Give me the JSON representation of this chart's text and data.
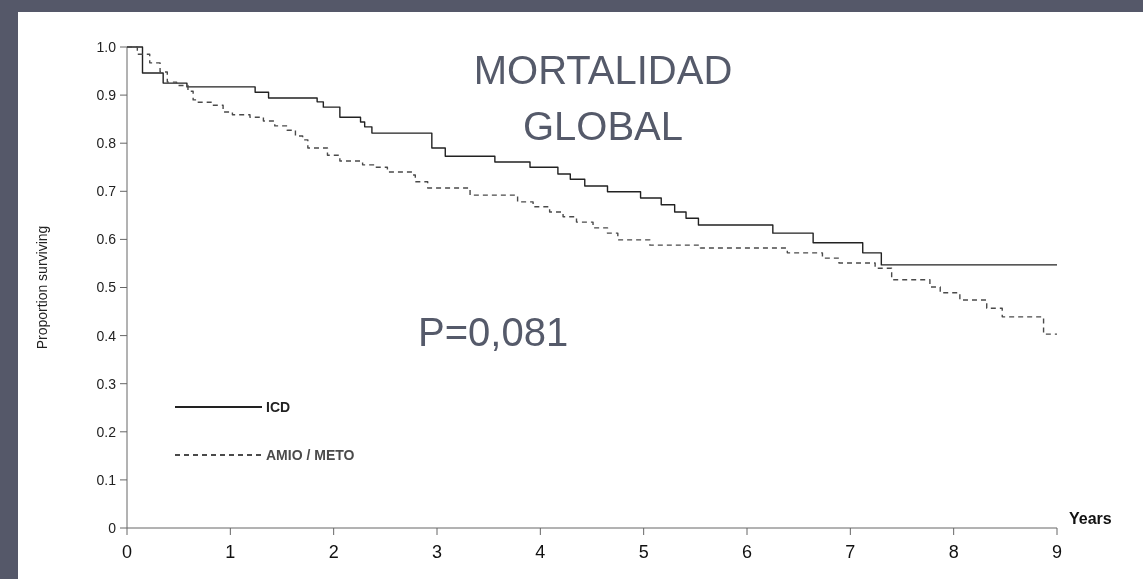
{
  "chart_data": {
    "type": "step",
    "title": "MORTALIDAD GLOBAL",
    "xlabel": "Years",
    "ylabel": "Proportion surviving",
    "annotations": [
      "P=0,081"
    ],
    "xlim": [
      0,
      9
    ],
    "xticks": [
      0,
      1,
      2,
      3,
      4,
      5,
      6,
      7,
      8,
      9
    ],
    "ylim": [
      0,
      1
    ],
    "yticks": [
      {
        "value": 0,
        "label": "0"
      },
      {
        "value": 0.1,
        "label": "0.1"
      },
      {
        "value": 0.2,
        "label": "0.2"
      },
      {
        "value": 0.3,
        "label": "0.3"
      },
      {
        "value": 0.4,
        "label": "0.4"
      },
      {
        "value": 0.5,
        "label": "0.5"
      },
      {
        "value": 0.6,
        "label": "0.6"
      },
      {
        "value": 0.7,
        "label": "0.7"
      },
      {
        "value": 0.8,
        "label": "0.8"
      },
      {
        "value": 0.9,
        "label": "0.9"
      },
      {
        "value": 1,
        "label": "1.0"
      }
    ],
    "legend": "bottom left",
    "grid": false,
    "series": [
      {
        "name": "ICD",
        "color": "#222222",
        "line_style": "solid",
        "x": [
          0,
          0.15,
          0.35,
          0.58,
          1.24,
          1.37,
          1.84,
          1.9,
          2.06,
          2.26,
          2.3,
          2.37,
          2.95,
          3.08,
          3.56,
          3.9,
          4.17,
          4.29,
          4.43,
          4.65,
          4.97,
          5.17,
          5.3,
          5.41,
          5.53,
          6.25,
          6.64,
          7.12,
          7.3,
          9
        ],
        "values": [
          1,
          0.946,
          0.925,
          0.917,
          0.906,
          0.894,
          0.886,
          0.875,
          0.854,
          0.844,
          0.834,
          0.821,
          0.79,
          0.773,
          0.761,
          0.75,
          0.736,
          0.725,
          0.711,
          0.699,
          0.686,
          0.672,
          0.657,
          0.644,
          0.63,
          0.613,
          0.593,
          0.572,
          0.547,
          0.547
        ]
      },
      {
        "name": "AMIO / METO",
        "color": "#4a4a4a",
        "line_style": "dashed",
        "x": [
          0,
          0.1,
          0.22,
          0.32,
          0.39,
          0.48,
          0.59,
          0.64,
          0.68,
          0.83,
          0.93,
          1.02,
          1.19,
          1.32,
          1.43,
          1.55,
          1.63,
          1.7,
          1.75,
          1.94,
          2.06,
          2.28,
          2.4,
          2.52,
          2.76,
          2.79,
          2.91,
          3.32,
          3.78,
          3.93,
          4.09,
          4.22,
          4.35,
          4.51,
          4.65,
          4.75,
          5.06,
          5.55,
          6.39,
          6.73,
          6.89,
          7.24,
          7.4,
          7.77,
          7.87,
          8.06,
          8.32,
          8.47,
          8.87,
          9
        ],
        "values": [
          1,
          0.985,
          0.967,
          0.948,
          0.927,
          0.92,
          0.908,
          0.89,
          0.885,
          0.879,
          0.865,
          0.859,
          0.854,
          0.846,
          0.836,
          0.827,
          0.815,
          0.807,
          0.79,
          0.775,
          0.763,
          0.755,
          0.75,
          0.74,
          0.734,
          0.72,
          0.707,
          0.692,
          0.678,
          0.668,
          0.657,
          0.647,
          0.636,
          0.624,
          0.613,
          0.599,
          0.588,
          0.582,
          0.572,
          0.561,
          0.551,
          0.54,
          0.516,
          0.501,
          0.489,
          0.474,
          0.457,
          0.439,
          0.403,
          0.403
        ]
      }
    ]
  }
}
